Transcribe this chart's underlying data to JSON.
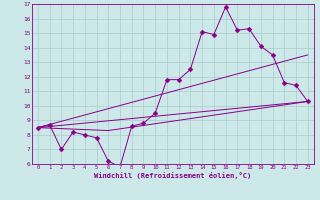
{
  "xlabel": "Windchill (Refroidissement éolien,°C)",
  "xlim": [
    -0.5,
    23.5
  ],
  "ylim": [
    6,
    17
  ],
  "xticks": [
    0,
    1,
    2,
    3,
    4,
    5,
    6,
    7,
    8,
    9,
    10,
    11,
    12,
    13,
    14,
    15,
    16,
    17,
    18,
    19,
    20,
    21,
    22,
    23
  ],
  "yticks": [
    6,
    7,
    8,
    9,
    10,
    11,
    12,
    13,
    14,
    15,
    16,
    17
  ],
  "bg_color": "#cce8e8",
  "line_color": "#880088",
  "grid_color": "#aacccc",
  "lines": [
    {
      "x": [
        0,
        1,
        2,
        3,
        4,
        5,
        6,
        7,
        8,
        9,
        10,
        11,
        12,
        13,
        14,
        15,
        16,
        17,
        18,
        19,
        20,
        21,
        22,
        23
      ],
      "y": [
        8.5,
        8.7,
        7.0,
        8.2,
        8.0,
        7.8,
        6.2,
        5.8,
        8.6,
        8.8,
        9.5,
        11.8,
        11.8,
        12.5,
        15.1,
        14.9,
        16.8,
        15.2,
        15.3,
        14.1,
        13.5,
        11.6,
        11.4,
        10.3
      ],
      "marker": "D",
      "markersize": 2.5,
      "has_marker": true
    },
    {
      "x": [
        0,
        23
      ],
      "y": [
        8.5,
        13.5
      ],
      "has_marker": false
    },
    {
      "x": [
        0,
        23
      ],
      "y": [
        8.5,
        10.3
      ],
      "has_marker": false
    },
    {
      "x": [
        0,
        6,
        23
      ],
      "y": [
        8.5,
        8.3,
        10.3
      ],
      "has_marker": false
    }
  ]
}
